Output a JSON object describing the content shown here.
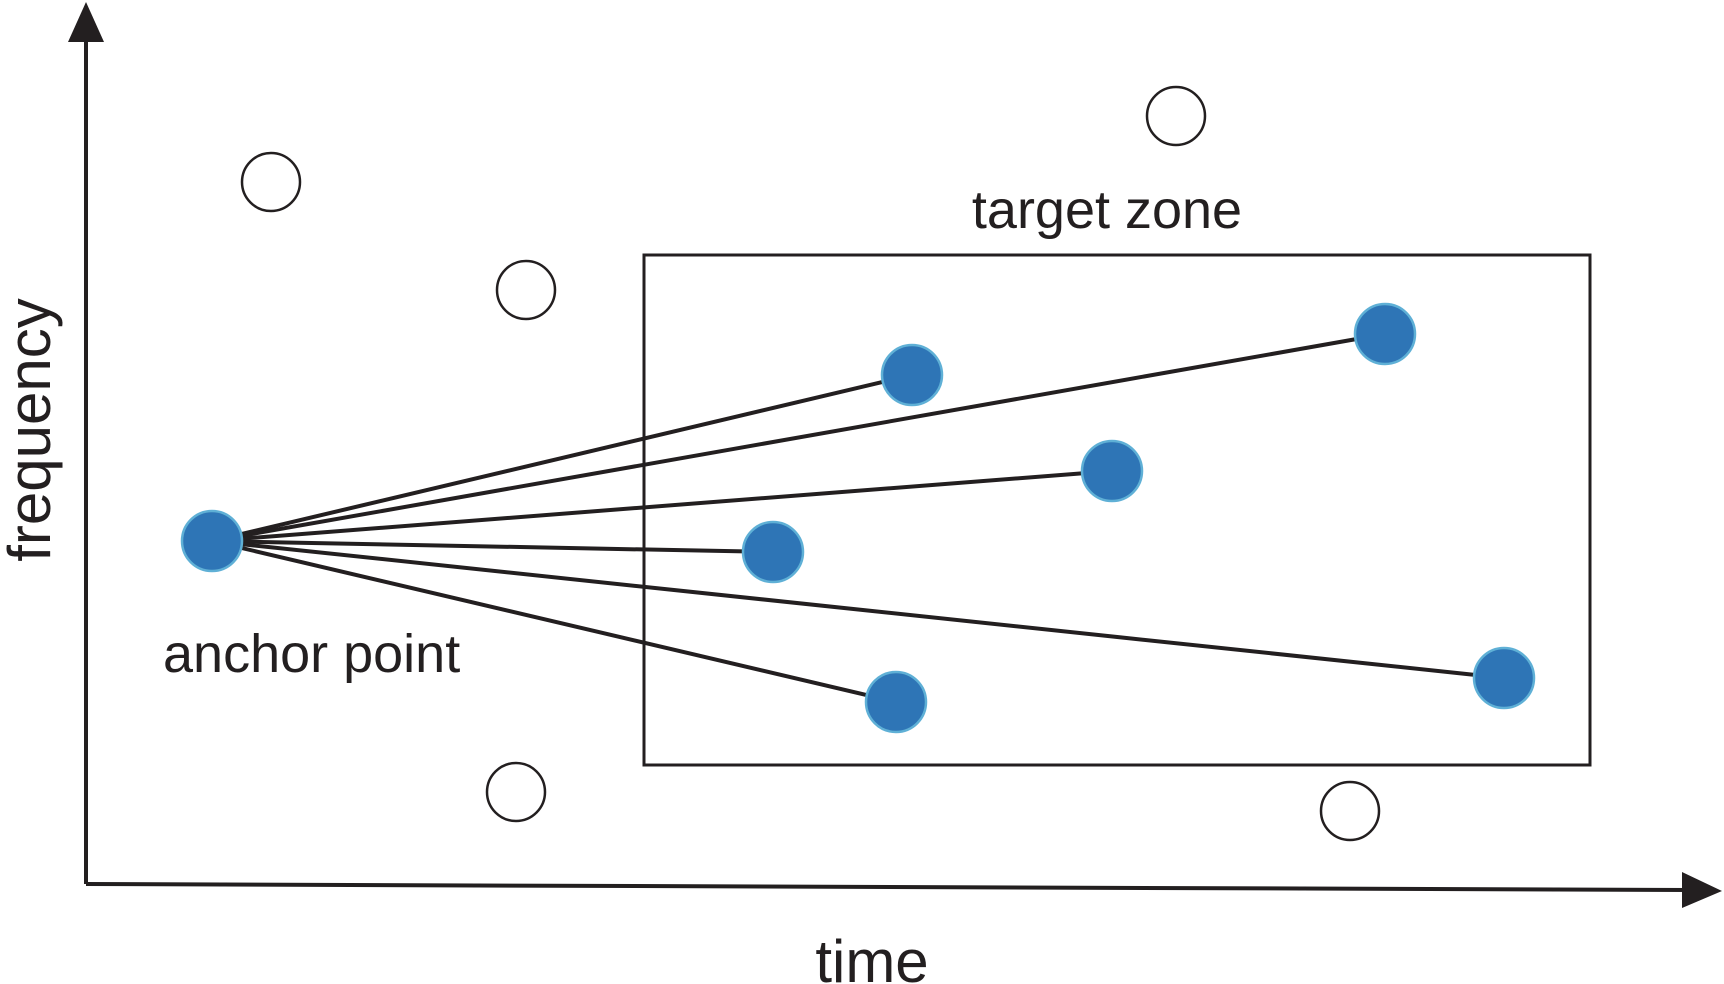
{
  "labels": {
    "x_axis": "time",
    "y_axis": "frequency",
    "target_zone": "target zone",
    "anchor_point": "anchor point"
  },
  "colors": {
    "ink": "#231f20",
    "peak_fill": "#2e75b6",
    "peak_stroke": "#5fb0d6",
    "empty_fill": "#ffffff"
  },
  "peaks": {
    "anchor": {
      "kind": "anchor"
    },
    "targets": [
      {
        "id": "t1"
      },
      {
        "id": "t2"
      },
      {
        "id": "t3"
      },
      {
        "id": "t4"
      },
      {
        "id": "t5"
      },
      {
        "id": "t6"
      }
    ],
    "unselected": [
      {
        "id": "u1"
      },
      {
        "id": "u2"
      },
      {
        "id": "u3"
      },
      {
        "id": "u4"
      },
      {
        "id": "u5"
      }
    ]
  }
}
